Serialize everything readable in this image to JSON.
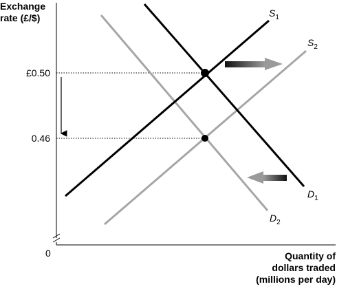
{
  "chart_data": {
    "type": "line",
    "ylabel_line1": "Exchange",
    "ylabel_line2": "rate (£/$)",
    "xlabel_line1": "Quantity of",
    "xlabel_line2": "dollars traded",
    "xlabel_line3": "(millions per day)",
    "y_ticks": [
      "£0.50",
      "0.46"
    ],
    "origin_label": "0",
    "series": [
      {
        "name": "S",
        "subscript": "1",
        "color": "#000000"
      },
      {
        "name": "S",
        "subscript": "2",
        "color": "#a6a6a6"
      },
      {
        "name": "D",
        "subscript": "1",
        "color": "#000000"
      },
      {
        "name": "D",
        "subscript": "2",
        "color": "#a6a6a6"
      }
    ],
    "equilibria": [
      {
        "curves": [
          "S1",
          "D1"
        ],
        "price": 0.5
      },
      {
        "curves": [
          "S2",
          "D2"
        ],
        "price": 0.46
      }
    ],
    "shifts": [
      {
        "curve": "S",
        "direction": "right",
        "color": "#555555"
      },
      {
        "curve": "D",
        "direction": "left",
        "color": "#555555"
      }
    ],
    "price_change": {
      "direction": "down",
      "from": 0.5,
      "to": 0.46
    },
    "grid": false
  }
}
